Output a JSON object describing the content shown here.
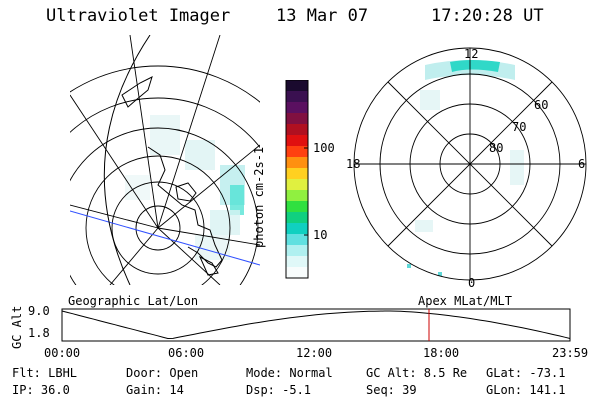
{
  "header": {
    "title": "Ultraviolet Imager",
    "date": "13 Mar 07",
    "time": "17:20:28 UT"
  },
  "colorbar": {
    "unit_label": "photon cm-2s-1",
    "ticks": [
      "100",
      "10"
    ],
    "colors_top_to_bottom": [
      "#1a0a2e",
      "#3a1050",
      "#5a1060",
      "#801040",
      "#b01020",
      "#e01010",
      "#ff4010",
      "#ff9010",
      "#ffd020",
      "#e0f040",
      "#90f040",
      "#30e040",
      "#10d080",
      "#10d0c0",
      "#60e0e0",
      "#b0f0f0",
      "#e0f8f8",
      "#f8fcfc"
    ]
  },
  "geo_panel": {
    "label": "Geographic Lat/Lon"
  },
  "polar_panel": {
    "label": "Apex MLat/MLT",
    "lat_labels": [
      "60",
      "70",
      "80"
    ],
    "mlt_labels": {
      "top": "12",
      "left": "18",
      "right": "6",
      "bottom": "0"
    }
  },
  "timeline": {
    "ylabel": "GC Alt",
    "y_ticks": [
      "9.0",
      "1.8"
    ],
    "x_ticks": [
      "00:00",
      "06:00",
      "12:00",
      "18:00",
      "23:59"
    ],
    "current_marker_hour": 17.34,
    "marker_color": "#cc0000"
  },
  "info": {
    "filter": "Flt: LBHL",
    "ip": "IP: 36.0",
    "door": "Door: Open",
    "gain": "Gain: 14",
    "mode": "Mode: Normal",
    "dsp": "Dsp:   -5.1",
    "gc_alt": "GC Alt: 8.5 Re",
    "seq": "Seq: 39",
    "glat": "GLat: -73.1",
    "glon": "GLon: 141.1"
  }
}
